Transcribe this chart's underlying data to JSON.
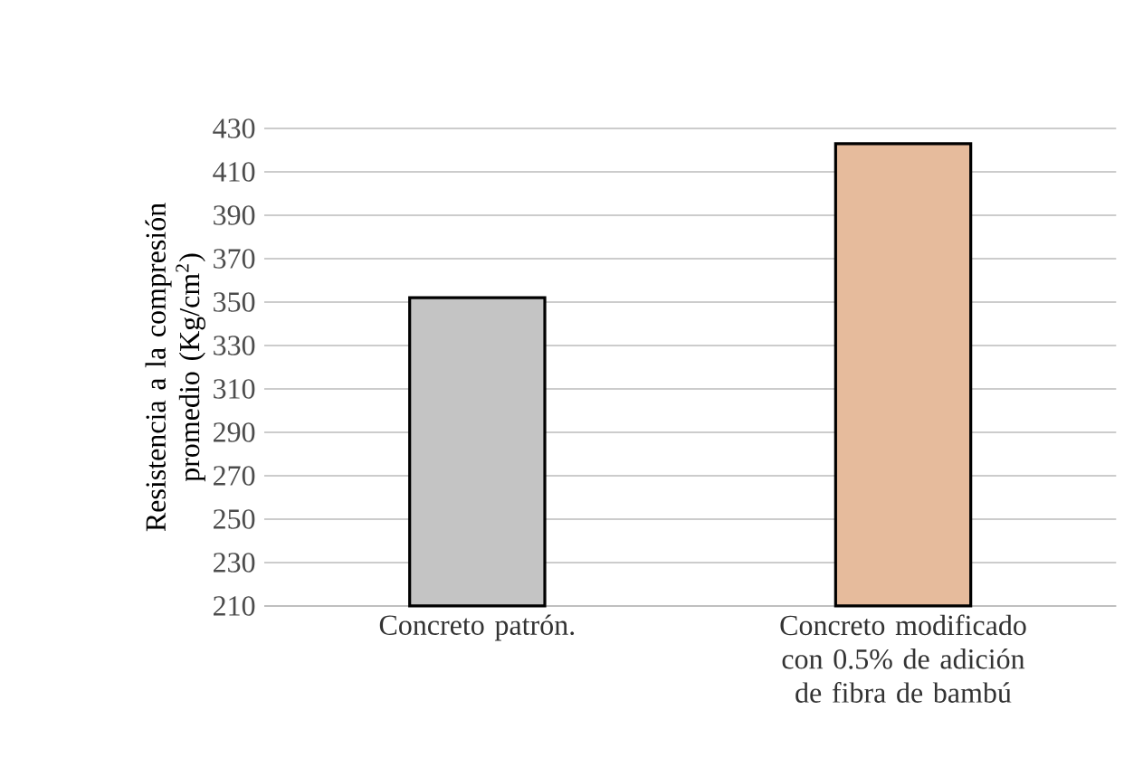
{
  "chart_data": {
    "type": "bar",
    "ylabel": "Resistencia a la compresión promedio (Kg/cm$^{2}$)",
    "categories": [
      "Concreto patrón.",
      "Concreto modificado con 0.5% de adición de fibra de bambú"
    ],
    "values": [
      352,
      423
    ],
    "colors": [
      "#c4c4c4",
      "#e6bb9c"
    ],
    "ylim": [
      210,
      430
    ],
    "yticks": [
      210,
      230,
      250,
      270,
      290,
      310,
      330,
      350,
      370,
      390,
      410,
      430
    ],
    "grid": "y"
  }
}
